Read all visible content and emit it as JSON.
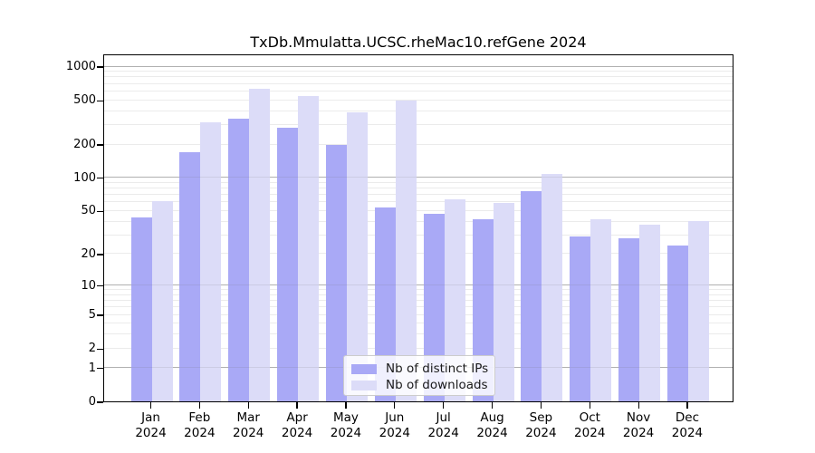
{
  "chart_data": {
    "type": "bar",
    "title": "TxDb.Mmulatta.UCSC.rheMac10.refGene 2024",
    "categories": [
      "Jan",
      "Feb",
      "Mar",
      "Apr",
      "May",
      "Jun",
      "Jul",
      "Aug",
      "Sep",
      "Oct",
      "Nov",
      "Dec"
    ],
    "category_year": "2024",
    "series": [
      {
        "name": "Nb of distinct IPs",
        "color": "#a9a9f6",
        "values": [
          43,
          168,
          340,
          280,
          195,
          53,
          47,
          42,
          75,
          29,
          28,
          24
        ]
      },
      {
        "name": "Nb of downloads",
        "color": "#dcdcf8",
        "values": [
          61,
          315,
          625,
          540,
          385,
          490,
          63,
          59,
          107,
          42,
          37,
          40
        ]
      }
    ],
    "yscale": "log1p",
    "ylim": [
      0,
      1300
    ],
    "yticks": [
      0,
      1,
      2,
      5,
      10,
      20,
      50,
      100,
      200,
      500,
      1000
    ],
    "major_yticks": [
      1,
      10,
      100,
      1000
    ],
    "minor_yticks": [
      3,
      4,
      6,
      7,
      8,
      9,
      30,
      40,
      60,
      70,
      80,
      90,
      300,
      400,
      600,
      700,
      800,
      900
    ],
    "grid": "horizontal",
    "grid_major_color": "#bcbcbc",
    "grid_minor_color": "#ebebeb",
    "spine_color": "#000000",
    "background_color": "#ffffff",
    "legend_position": "bottom-center"
  }
}
